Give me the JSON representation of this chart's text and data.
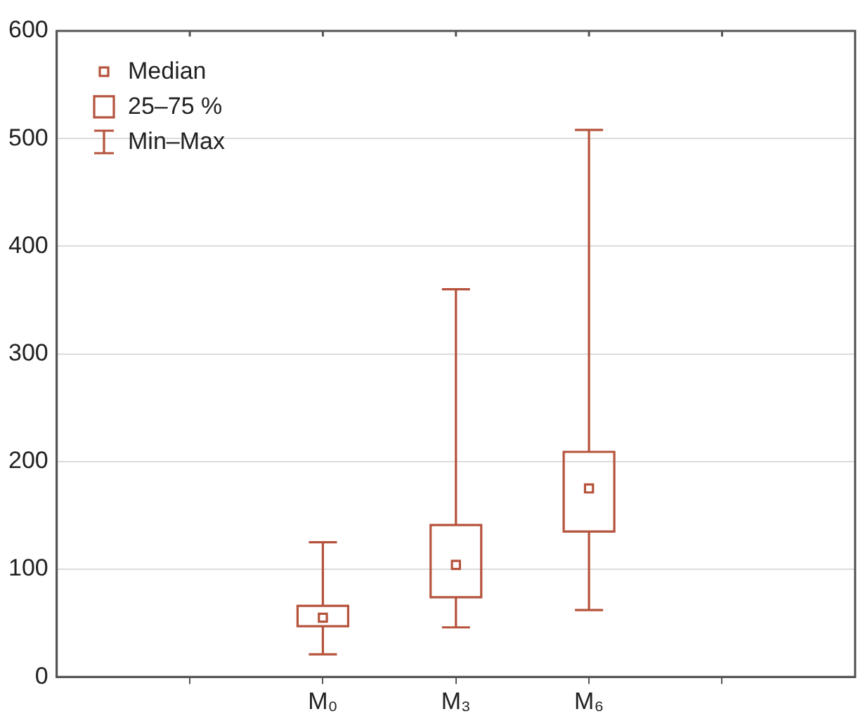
{
  "chart_data": {
    "type": "box",
    "categories": [
      null,
      "M₀",
      "M₃",
      "M₆",
      null
    ],
    "boxes": [
      null,
      {
        "low": 21,
        "q1": 47,
        "median": 55,
        "q3": 66,
        "high": 125
      },
      {
        "low": 46,
        "q1": 74,
        "median": 104,
        "q3": 141,
        "high": 360
      },
      {
        "low": 62,
        "q1": 135,
        "median": 175,
        "q3": 209,
        "high": 508
      },
      null
    ],
    "color": "#b5533c",
    "ylim": [
      0,
      600
    ],
    "yticks": [
      0,
      100,
      200,
      300,
      400,
      500,
      600
    ],
    "grid": "y",
    "marker": "square",
    "annotations": [
      "Median",
      "25–75 %",
      "Min–Max"
    ]
  }
}
